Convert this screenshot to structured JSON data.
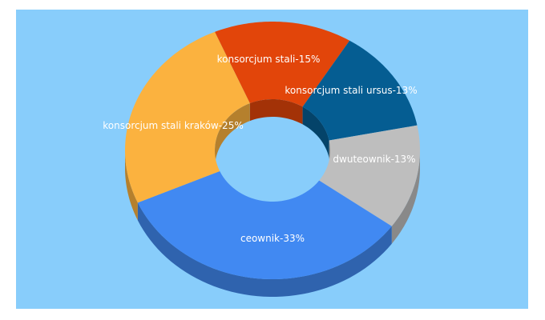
{
  "chart_data": {
    "type": "pie",
    "style": "3d-donut",
    "background": "#88cdfb",
    "slices": [
      {
        "label": "konsorcjum stali-15%",
        "value": 15,
        "color": "#e2450a"
      },
      {
        "label": "konsorcjum stali ursus-13%",
        "value": 13,
        "color": "#055d92"
      },
      {
        "label": "dwuteownik-13%",
        "value": 13,
        "color": "#bebebe"
      },
      {
        "label": "ceownik-33%",
        "value": 33,
        "color": "#4189f2"
      },
      {
        "label": "konsorcjum stali kraków-25%",
        "value": 25,
        "color": "#fbb23f"
      }
    ]
  }
}
